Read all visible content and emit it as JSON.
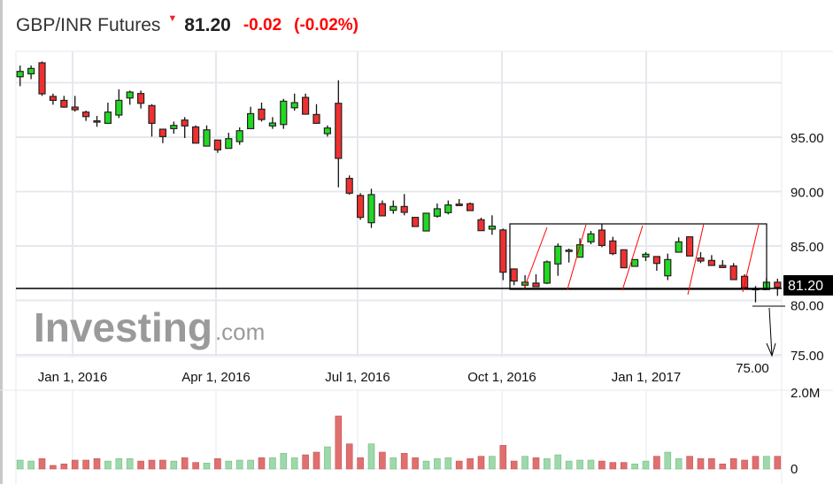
{
  "header": {
    "title": "GBP/INR Futures",
    "arrow_icon": "down-triangle-icon",
    "price": "81.20",
    "change": "-0.02",
    "change_pct": "(-0.02%)"
  },
  "colors": {
    "up": "#22d822",
    "down": "#f03030",
    "vol_up": "#9fd8ab",
    "vol_down": "#e07070",
    "grid": "#e6e8ee",
    "annotation": "#ff0000"
  },
  "watermark": {
    "brand": "Investing",
    "suffix": ".com"
  },
  "chart_data": {
    "type": "candlestick",
    "title": "",
    "y_ticks": [
      "95.00",
      "90.00",
      "85.00",
      "80.00",
      "75.00"
    ],
    "y_tick_values": [
      95,
      90,
      85,
      80,
      75
    ],
    "ylim": [
      75,
      102
    ],
    "x_tick_labels": [
      "Jan 1, 2016",
      "Apr 1, 2016",
      "Jul 1, 2016",
      "Oct 1, 2016",
      "Jan 1, 2017"
    ],
    "last_price_label": "81.20",
    "target_label": "75.00",
    "volume_ticks": [
      "2.0M",
      "0"
    ],
    "volume_max": 2.0,
    "ohlc": [
      [
        100.55,
        101.58,
        99.68,
        101.04
      ],
      [
        100.82,
        101.58,
        100.33,
        101.31
      ],
      [
        101.83,
        101.96,
        98.79,
        98.98
      ],
      [
        98.74,
        99.0,
        97.98,
        98.38
      ],
      [
        98.38,
        98.79,
        97.7,
        97.76
      ],
      [
        97.76,
        98.79,
        97.35,
        97.52
      ],
      [
        97.3,
        97.44,
        96.49,
        96.89
      ],
      [
        96.5,
        96.95,
        95.95,
        96.45
      ],
      [
        96.27,
        98.17,
        96.27,
        97.3
      ],
      [
        97.03,
        99.39,
        96.76,
        98.38
      ],
      [
        98.6,
        99.28,
        97.98,
        99.14
      ],
      [
        99.01,
        99.28,
        97.63,
        98.11
      ],
      [
        97.9,
        98.03,
        95.05,
        96.27
      ],
      [
        95.73,
        95.73,
        94.45,
        95.05
      ],
      [
        95.78,
        96.43,
        95.32,
        96.08
      ],
      [
        96.57,
        96.84,
        94.92,
        96.03
      ],
      [
        95.94,
        96.08,
        94.45,
        94.45
      ],
      [
        94.18,
        96.08,
        94.18,
        95.67
      ],
      [
        94.73,
        94.73,
        93.56,
        93.83
      ],
      [
        93.97,
        95.4,
        93.97,
        94.86
      ],
      [
        94.59,
        95.9,
        94.3,
        95.59
      ],
      [
        95.78,
        97.79,
        95.78,
        97.16
      ],
      [
        97.57,
        98.17,
        96.43,
        96.62
      ],
      [
        96.03,
        96.84,
        95.76,
        96.3
      ],
      [
        96.16,
        98.52,
        95.76,
        98.3
      ],
      [
        97.7,
        99.0,
        97.44,
        98.17
      ],
      [
        98.65,
        99.0,
        97.11,
        97.11
      ],
      [
        97.08,
        98.03,
        96.27,
        96.27
      ],
      [
        95.32,
        96.08,
        95.05,
        95.84
      ],
      [
        98.11,
        100.23,
        90.39,
        93.05
      ],
      [
        91.21,
        91.48,
        89.72,
        89.85
      ],
      [
        89.64,
        89.85,
        87.41,
        87.63
      ],
      [
        87.14,
        90.26,
        86.66,
        89.72
      ],
      [
        88.88,
        89.18,
        87.77,
        87.77
      ],
      [
        88.28,
        89.18,
        87.96,
        88.63
      ],
      [
        88.63,
        89.77,
        87.82,
        88.09
      ],
      [
        87.63,
        87.63,
        86.79,
        86.79
      ],
      [
        86.38,
        88.01,
        86.38,
        88.01
      ],
      [
        87.74,
        88.9,
        87.6,
        88.42
      ],
      [
        88.06,
        89.18,
        87.9,
        88.77
      ],
      [
        88.85,
        89.31,
        88.71,
        88.71
      ],
      [
        88.88,
        89.0,
        88.25,
        88.25
      ],
      [
        87.41,
        87.6,
        86.41,
        86.41
      ],
      [
        86.55,
        87.82,
        86.03,
        86.82
      ],
      [
        86.47,
        86.6,
        81.86,
        82.59
      ],
      [
        82.89,
        82.89,
        81.4,
        81.78
      ],
      [
        81.4,
        82.32,
        81.18,
        81.67
      ],
      [
        81.59,
        82.4,
        81.26,
        81.26
      ],
      [
        81.59,
        83.67,
        81.5,
        83.54
      ],
      [
        83.35,
        85.24,
        82.26,
        84.97
      ],
      [
        84.6,
        84.76,
        83.48,
        84.62
      ],
      [
        83.97,
        85.71,
        83.97,
        85.11
      ],
      [
        85.38,
        86.38,
        85.16,
        86.11
      ],
      [
        86.46,
        87.0,
        84.89,
        85.05
      ],
      [
        85.46,
        85.84,
        84.16,
        84.3
      ],
      [
        84.65,
        84.65,
        83.0,
        83.0
      ],
      [
        83.13,
        83.75,
        83.13,
        83.75
      ],
      [
        84.0,
        84.43,
        83.62,
        84.24
      ],
      [
        84.03,
        84.03,
        82.72,
        83.4
      ],
      [
        82.26,
        84.3,
        81.86,
        83.75
      ],
      [
        84.43,
        85.79,
        84.43,
        85.38
      ],
      [
        85.84,
        85.84,
        84.08,
        84.08
      ],
      [
        83.89,
        84.43,
        83.43,
        83.62
      ],
      [
        83.67,
        84.16,
        83.21,
        83.21
      ],
      [
        83.21,
        83.7,
        83.02,
        83.02
      ],
      [
        83.16,
        83.43,
        81.91,
        81.91
      ],
      [
        82.21,
        82.4,
        80.99,
        81.18
      ],
      [
        81.1,
        81.32,
        79.82,
        81.08
      ],
      [
        80.99,
        82.07,
        80.99,
        81.67
      ],
      [
        81.67,
        81.99,
        80.42,
        81.2
      ]
    ],
    "volume_millions": [
      0.235,
      0.21,
      0.275,
      0.094,
      0.133,
      0.235,
      0.235,
      0.275,
      0.21,
      0.275,
      0.275,
      0.21,
      0.235,
      0.235,
      0.21,
      0.298,
      0.173,
      0.157,
      0.275,
      0.21,
      0.235,
      0.235,
      0.298,
      0.298,
      0.416,
      0.298,
      0.376,
      0.447,
      0.588,
      1.41,
      0.667,
      0.298,
      0.667,
      0.447,
      0.298,
      0.416,
      0.298,
      0.21,
      0.275,
      0.298,
      0.21,
      0.275,
      0.337,
      0.337,
      0.627,
      0.21,
      0.337,
      0.298,
      0.275,
      0.376,
      0.21,
      0.235,
      0.235,
      0.21,
      0.173,
      0.173,
      0.133,
      0.21,
      0.337,
      0.447,
      0.275,
      0.337,
      0.275,
      0.275,
      0.133,
      0.275,
      0.235,
      0.337,
      0.337,
      0.337
    ]
  }
}
